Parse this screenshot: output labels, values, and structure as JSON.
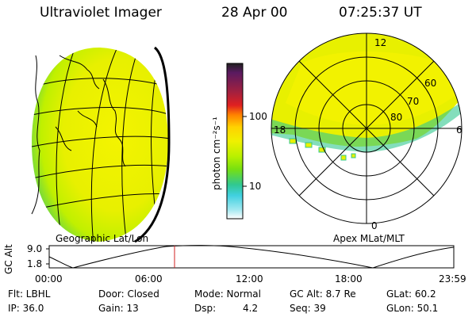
{
  "header": {
    "title": "Ultraviolet Imager",
    "date": "28 Apr 00",
    "time": "07:25:37 UT"
  },
  "colorbar": {
    "unit_label": "photon cm⁻²s⁻¹",
    "tick_100": "100",
    "tick_10": "10",
    "colors": [
      "#202020",
      "#5a1a60",
      "#a02040",
      "#e02020",
      "#ff8000",
      "#ffd200",
      "#f0f000",
      "#b8f000",
      "#78e010",
      "#30c890",
      "#40d0e0",
      "#a0e8f0",
      "#ffffff"
    ]
  },
  "left_panel": {
    "label": "Geographic Lat/Lon"
  },
  "right_panel": {
    "label": "Apex MLat/MLT",
    "mlt_12": "12",
    "mlt_18": "18",
    "mlt_6": "6",
    "mlt_0": "0",
    "lat_60": "60",
    "lat_70": "70",
    "lat_80": "80"
  },
  "gc_plot": {
    "axis_label": "GC Alt",
    "y_top": "9.0",
    "y_bottom": "1.8",
    "times": [
      "00:00",
      "06:00",
      "12:00",
      "18:00",
      "23:59"
    ],
    "marker_color": "#d02020"
  },
  "footer": {
    "flt": "Flt: LBHL",
    "ip": "IP: 36.0",
    "door": "Door: Closed",
    "gain": "Gain: 13",
    "mode": "Mode: Normal",
    "dsp_label": "Dsp:",
    "dsp_value": "4.2",
    "gc_alt": "GC Alt: 8.7 Re",
    "seq": "Seq: 39",
    "glat": "GLat: 60.2",
    "glon": "GLon: 50.1"
  }
}
